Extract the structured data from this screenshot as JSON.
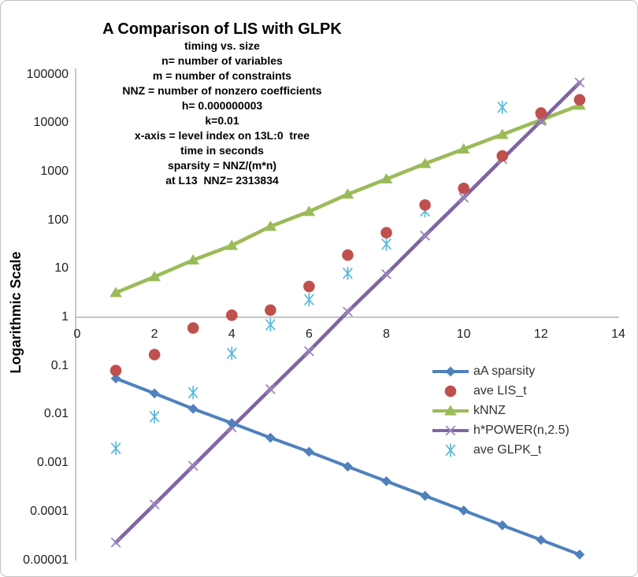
{
  "title": "A Comparison of LIS with GLPK",
  "subtitle_lines": [
    "timing vs. size",
    "n= number of variables",
    "m = number of constraints",
    "NNZ = number of nonzero coefficients",
    "h= 0.000000003",
    "k=0.01",
    "x-axis = level index on 13L:0  tree",
    "time in seconds",
    "sparsity = NNZ/(m*n)",
    "at L13  NNZ= 2313834"
  ],
  "y_axis": {
    "label": "Logarithmic Scale",
    "scale": "log",
    "tick_labels": [
      "100000",
      "10000",
      "1000",
      "100",
      "10",
      "1",
      "0.1",
      "0.01",
      "0.001",
      "0.0001",
      "0.00001"
    ]
  },
  "x_axis": {
    "tick_labels": [
      "0",
      "2",
      "4",
      "6",
      "8",
      "10",
      "12",
      "14"
    ],
    "range": [
      0,
      14
    ]
  },
  "colors": {
    "sparsity_blue": "#4F81BD",
    "lis_red": "#C0504D",
    "knnz_green": "#9BBB59",
    "power_purple": "#8064A2",
    "power_marker": "#9B87BF",
    "glpk_teal": "#5BB8DB",
    "axis_gray": "#a3a3a3",
    "text_dark": "#1f1f1f"
  },
  "chart_data": {
    "type": "scatter",
    "title": "A Comparison of LIS with GLPK",
    "ylabel": "Logarithmic Scale",
    "y_scale": "log",
    "ylim": [
      1e-05,
      100000
    ],
    "xlim": [
      0,
      14
    ],
    "legend_position": "lower right",
    "grid": false,
    "series": [
      {
        "name": "aA sparsity",
        "style": "line+marker",
        "marker": "diamond",
        "color": "#4F81BD",
        "x": [
          1,
          2,
          3,
          4,
          5,
          6,
          7,
          8,
          9,
          10,
          11,
          12,
          13
        ],
        "y": [
          0.055,
          0.027,
          0.013,
          0.0066,
          0.0033,
          0.0017,
          0.00084,
          0.00042,
          0.00021,
          0.000105,
          5.2e-05,
          2.6e-05,
          1.3e-05
        ]
      },
      {
        "name": "ave LIS_t",
        "style": "marker",
        "marker": "circle",
        "color": "#C0504D",
        "x": [
          1,
          2,
          3,
          4,
          5,
          6,
          7,
          8,
          9,
          10,
          11,
          12,
          13
        ],
        "y": [
          0.08,
          0.17,
          0.6,
          1.1,
          1.4,
          4.3,
          19,
          55,
          205,
          450,
          2100,
          16000,
          30000
        ]
      },
      {
        "name": "kNNZ",
        "style": "line+marker",
        "marker": "triangle",
        "color": "#9BBB59",
        "x": [
          1,
          2,
          3,
          4,
          5,
          6,
          7,
          8,
          9,
          10,
          11,
          12,
          13
        ],
        "y": [
          3.2,
          6.8,
          15,
          30,
          74,
          150,
          340,
          700,
          1450,
          2900,
          5790,
          11570,
          23138
        ]
      },
      {
        "name": "h*POWER(n,2.5)",
        "style": "line+marker",
        "marker": "x-cross",
        "color": "#8064A2",
        "x": [
          1,
          2,
          3,
          4,
          5,
          6,
          7,
          8,
          9,
          10,
          11,
          12,
          13
        ],
        "y": [
          2.3e-05,
          0.00014,
          0.00087,
          0.0054,
          0.033,
          0.2,
          1.3,
          7.7,
          48,
          290,
          1800,
          11000,
          68000
        ]
      },
      {
        "name": "ave GLPK_t",
        "style": "marker",
        "marker": "asterisk",
        "color": "#5BB8DB",
        "x": [
          1,
          2,
          3,
          4,
          5,
          6,
          7,
          8,
          9,
          11
        ],
        "y": [
          0.002,
          0.009,
          0.028,
          0.18,
          0.7,
          2.3,
          8,
          32,
          155,
          21000
        ]
      }
    ]
  }
}
